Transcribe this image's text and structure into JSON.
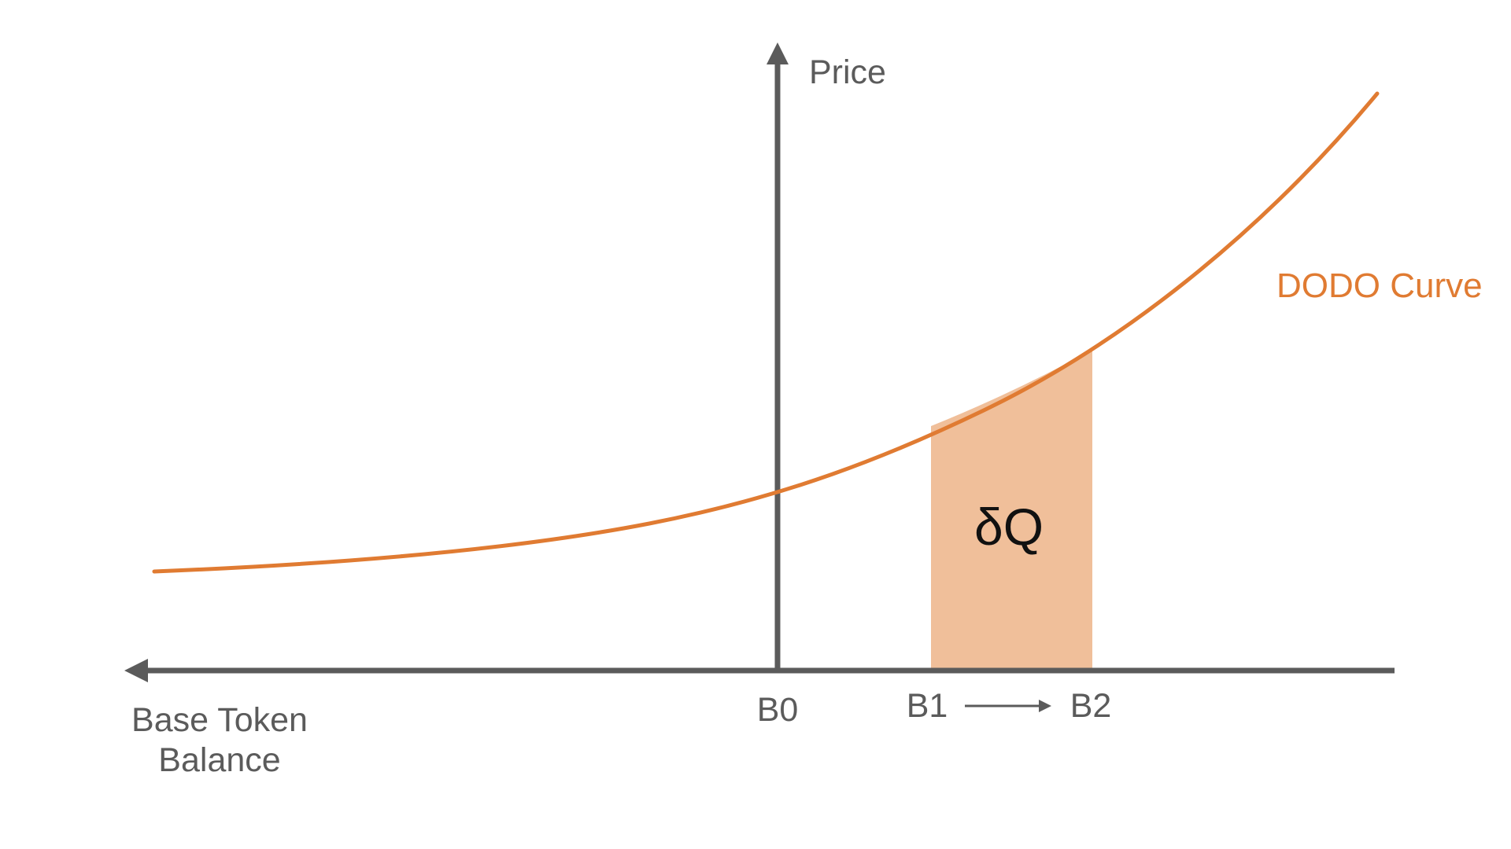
{
  "diagram": {
    "y_axis_label": "Price",
    "x_axis_label_line1": "Base Token",
    "x_axis_label_line2": "Balance",
    "curve_label": "DODO Curve",
    "area_label": "δQ",
    "ticks": {
      "b0": "B0",
      "b1": "B1",
      "b2": "B2"
    }
  },
  "colors": {
    "axis": "#5b5b5b",
    "curve": "#e07b32",
    "area_fill": "#f0bf9a",
    "area_text": "#111111"
  }
}
